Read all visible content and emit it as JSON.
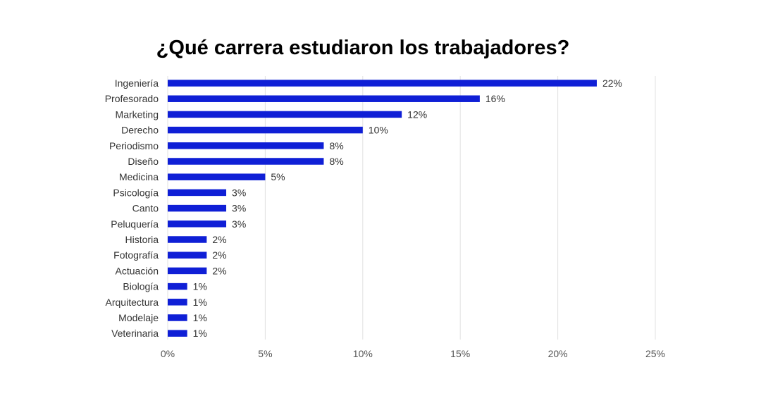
{
  "chart_data": {
    "type": "bar",
    "orientation": "horizontal",
    "title": "¿Qué carrera estudiaron los trabajadores?",
    "categories": [
      "Ingeniería",
      "Profesorado",
      "Marketing",
      "Derecho",
      "Periodismo",
      "Diseño",
      "Medicina",
      "Psicología",
      "Canto",
      "Peluquería",
      "Historia",
      "Fotografía",
      "Actuación",
      "Biología",
      "Arquitectura",
      "Modelaje",
      "Veterinaria"
    ],
    "values": [
      22,
      16,
      12,
      10,
      8,
      8,
      5,
      3,
      3,
      3,
      2,
      2,
      2,
      1,
      1,
      1,
      1
    ],
    "value_labels": [
      "22%",
      "16%",
      "12%",
      "10%",
      "8%",
      "8%",
      "5%",
      "3%",
      "3%",
      "3%",
      "2%",
      "2%",
      "2%",
      "1%",
      "1%",
      "1%",
      "1%"
    ],
    "xticks": [
      "0%",
      "5%",
      "10%",
      "15%",
      "20%",
      "25%"
    ],
    "xlim": [
      0,
      25
    ],
    "xlabel": "",
    "ylabel": "",
    "grid": "vertical",
    "bar_color": "#0f1fd6",
    "grid_color": "#e0e0e0"
  }
}
